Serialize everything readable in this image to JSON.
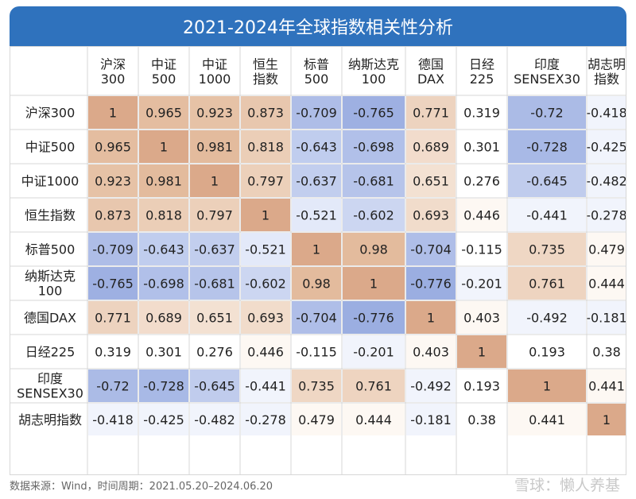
{
  "title": "2021-2024年全球指数相关性分析",
  "footer": "数据来源：Wind，时间周期：2021.05.20–2024.06.20",
  "watermark": "雪球：懒人养基",
  "colors": {
    "pos_high": "#e2b99a",
    "pos_low": "#fbf2ea",
    "neg_high": "#94a8df",
    "neg_low": "#e9eefb",
    "diag": "#dba98a",
    "border": "#d7d7d7",
    "text": "#222222"
  },
  "chart_data": {
    "type": "heatmap",
    "title": "2021-2024年全球指数相关性分析",
    "columns": [
      [
        "沪深",
        "300"
      ],
      [
        "中证",
        "500"
      ],
      [
        "中证",
        "1000"
      ],
      [
        "恒生",
        "指数"
      ],
      [
        "标普",
        "500"
      ],
      [
        "纳斯达克",
        "100"
      ],
      [
        "德国",
        "DAX"
      ],
      [
        "日经",
        "225"
      ],
      [
        "印度",
        "SENSEX30"
      ],
      [
        "胡志明",
        "指数"
      ]
    ],
    "rows": [
      [
        "沪深300"
      ],
      [
        "中证500"
      ],
      [
        "中证1000"
      ],
      [
        "恒生指数"
      ],
      [
        "标普500"
      ],
      [
        "纳斯达克",
        "100"
      ],
      [
        "德国DAX"
      ],
      [
        "日经225"
      ],
      [
        "印度",
        "SENSEX30"
      ],
      [
        "胡志明指数"
      ]
    ],
    "values": [
      [
        1,
        0.965,
        0.923,
        0.873,
        -0.709,
        -0.765,
        0.771,
        0.319,
        -0.72,
        -0.418
      ],
      [
        0.965,
        1,
        0.981,
        0.818,
        -0.643,
        -0.698,
        0.689,
        0.301,
        -0.728,
        -0.425
      ],
      [
        0.923,
        0.981,
        1,
        0.797,
        -0.637,
        -0.681,
        0.651,
        0.276,
        -0.645,
        -0.482
      ],
      [
        0.873,
        0.818,
        0.797,
        1,
        -0.521,
        -0.602,
        0.693,
        0.446,
        -0.441,
        -0.278
      ],
      [
        -0.709,
        -0.643,
        -0.637,
        -0.521,
        1,
        0.98,
        -0.704,
        -0.115,
        0.735,
        0.479
      ],
      [
        -0.765,
        -0.698,
        -0.681,
        -0.602,
        0.98,
        1,
        -0.776,
        -0.201,
        0.761,
        0.444
      ],
      [
        0.771,
        0.689,
        0.651,
        0.693,
        -0.704,
        -0.776,
        1,
        0.403,
        -0.492,
        -0.181
      ],
      [
        0.319,
        0.301,
        0.276,
        0.446,
        -0.115,
        -0.201,
        0.403,
        1,
        0.193,
        0.38
      ],
      [
        -0.72,
        -0.728,
        -0.645,
        -0.441,
        0.735,
        0.761,
        -0.492,
        0.193,
        1,
        0.441
      ],
      [
        -0.418,
        -0.425,
        -0.482,
        -0.278,
        0.479,
        0.444,
        -0.181,
        0.38,
        0.441,
        1
      ]
    ]
  }
}
